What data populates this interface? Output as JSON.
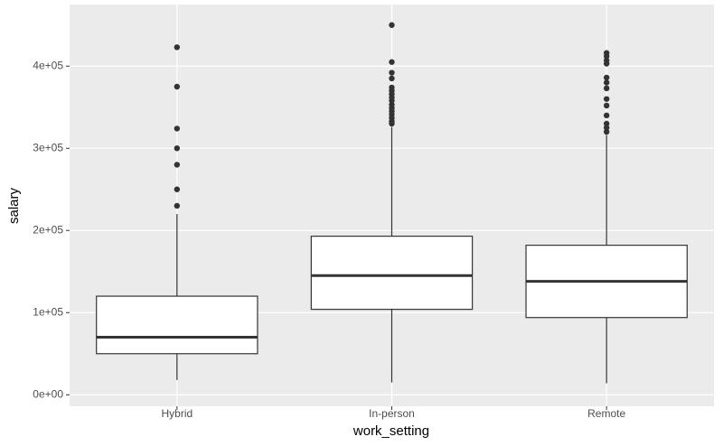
{
  "chart_data": {
    "type": "box",
    "x_label": "work_setting",
    "y_label": "salary",
    "categories": [
      "Hybrid",
      "In-person",
      "Remote"
    ],
    "boxes": [
      {
        "whisker_low": 18000,
        "q1": 50000,
        "median": 70000,
        "q3": 120000,
        "whisker_high": 220000,
        "outliers": [
          423000,
          375000,
          324000,
          300000,
          280000,
          250000,
          230000
        ]
      },
      {
        "whisker_low": 15000,
        "q1": 104000,
        "median": 145000,
        "q3": 193000,
        "whisker_high": 326000,
        "outliers": [
          450000,
          405000,
          392000,
          385000,
          374000,
          370000,
          366000,
          362000,
          358000,
          353000,
          349000,
          345000,
          341000,
          337000,
          333000,
          330000
        ]
      },
      {
        "whisker_low": 14000,
        "q1": 94000,
        "median": 138000,
        "q3": 182000,
        "whisker_high": 316000,
        "outliers": [
          416000,
          412000,
          407000,
          403000,
          386000,
          380000,
          373000,
          360000,
          352000,
          340000,
          330000,
          325000,
          320000
        ]
      }
    ],
    "color": "#333333",
    "fill": "#ffffff",
    "ylim": [
      -14000,
      475000
    ],
    "yticks": [
      {
        "value": 0,
        "label": "0e+00"
      },
      {
        "value": 100000,
        "label": "1e+05"
      },
      {
        "value": 200000,
        "label": "2e+05"
      },
      {
        "value": 300000,
        "label": "3e+05"
      },
      {
        "value": 400000,
        "label": "4e+05"
      }
    ],
    "grid": true
  }
}
